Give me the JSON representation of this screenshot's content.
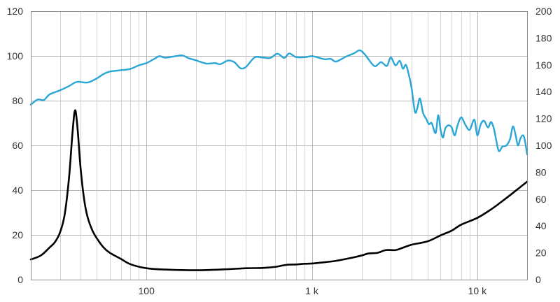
{
  "chart_data": {
    "type": "line",
    "title": "",
    "xlabel": "",
    "ylabel": "",
    "ylabel_right": "",
    "x_scale": "log",
    "xlim": [
      20,
      20000
    ],
    "ylim_left": [
      0,
      120
    ],
    "ylim_right": [
      0,
      200
    ],
    "grid": true,
    "legend": "none",
    "x_ticks": [
      {
        "value": 100,
        "label": "100"
      },
      {
        "value": 1000,
        "label": "1 k"
      },
      {
        "value": 10000,
        "label": "10 k"
      }
    ],
    "y_ticks_left": [
      "0",
      "20",
      "40",
      "60",
      "80",
      "100",
      "120"
    ],
    "y_ticks_right": [
      "0",
      "20",
      "40",
      "60",
      "80",
      "100",
      "120",
      "140",
      "160",
      "180",
      "200"
    ],
    "series": [
      {
        "axis": "left",
        "color": "#2aa6d6",
        "points": [
          [
            20,
            78.2
          ],
          [
            22,
            80.5
          ],
          [
            24,
            80.3
          ],
          [
            26,
            82.8
          ],
          [
            30,
            84.6
          ],
          [
            34,
            86.5
          ],
          [
            38,
            88.4
          ],
          [
            44,
            88.1
          ],
          [
            50,
            89.9
          ],
          [
            55,
            91.9
          ],
          [
            60,
            93.0
          ],
          [
            70,
            93.6
          ],
          [
            80,
            94.2
          ],
          [
            90,
            95.8
          ],
          [
            100,
            96.8
          ],
          [
            110,
            98.4
          ],
          [
            120,
            99.9
          ],
          [
            130,
            99.2
          ],
          [
            150,
            99.9
          ],
          [
            165,
            100.2
          ],
          [
            180,
            99.0
          ],
          [
            200,
            98.0
          ],
          [
            230,
            96.6
          ],
          [
            260,
            96.8
          ],
          [
            280,
            96.3
          ],
          [
            310,
            97.9
          ],
          [
            340,
            97.2
          ],
          [
            370,
            94.5
          ],
          [
            400,
            95.1
          ],
          [
            450,
            99.3
          ],
          [
            500,
            99.3
          ],
          [
            560,
            99.1
          ],
          [
            620,
            101.0
          ],
          [
            680,
            99.1
          ],
          [
            730,
            101.1
          ],
          [
            800,
            99.5
          ],
          [
            900,
            99.4
          ],
          [
            1000,
            99.9
          ],
          [
            1100,
            99.2
          ],
          [
            1200,
            98.5
          ],
          [
            1300,
            98.7
          ],
          [
            1400,
            97.5
          ],
          [
            1600,
            99.6
          ],
          [
            1800,
            101.2
          ],
          [
            1950,
            102.5
          ],
          [
            2100,
            100.5
          ],
          [
            2200,
            98.5
          ],
          [
            2400,
            95.4
          ],
          [
            2600,
            97.2
          ],
          [
            2700,
            96.6
          ],
          [
            2850,
            95.6
          ],
          [
            3000,
            99.3
          ],
          [
            3200,
            95.8
          ],
          [
            3400,
            97.8
          ],
          [
            3550,
            94.3
          ],
          [
            3700,
            96.0
          ],
          [
            3850,
            91.8
          ],
          [
            4000,
            86.0
          ],
          [
            4200,
            75.0
          ],
          [
            4350,
            77.0
          ],
          [
            4500,
            81.0
          ],
          [
            4700,
            74.5
          ],
          [
            4900,
            72.0
          ],
          [
            5100,
            69.5
          ],
          [
            5300,
            70.0
          ],
          [
            5600,
            65.5
          ],
          [
            5800,
            73.5
          ],
          [
            6000,
            67.0
          ],
          [
            6200,
            63.5
          ],
          [
            6400,
            67.5
          ],
          [
            6700,
            69.0
          ],
          [
            7000,
            68.0
          ],
          [
            7300,
            64.5
          ],
          [
            7600,
            69.0
          ],
          [
            8000,
            72.5
          ],
          [
            8500,
            69.0
          ],
          [
            9000,
            67.0
          ],
          [
            9600,
            71.5
          ],
          [
            10000,
            64.5
          ],
          [
            10500,
            69.5
          ],
          [
            11000,
            71.0
          ],
          [
            11600,
            68.0
          ],
          [
            12100,
            70.5
          ],
          [
            12600,
            67.5
          ],
          [
            13000,
            62.5
          ],
          [
            13500,
            57.5
          ],
          [
            14200,
            59.5
          ],
          [
            15000,
            60.0
          ],
          [
            15800,
            63.0
          ],
          [
            16400,
            68.5
          ],
          [
            17000,
            65.0
          ],
          [
            17600,
            60.0
          ],
          [
            18200,
            63.0
          ],
          [
            18800,
            64.5
          ],
          [
            19300,
            63.0
          ],
          [
            20000,
            56.0
          ]
        ]
      },
      {
        "axis": "right",
        "color": "#000000",
        "points": [
          [
            20,
            15.0
          ],
          [
            23,
            18.0
          ],
          [
            26,
            24.0
          ],
          [
            28,
            28.0
          ],
          [
            30,
            35.0
          ],
          [
            32,
            48.0
          ],
          [
            34,
            75.0
          ],
          [
            35.5,
            105.0
          ],
          [
            36.5,
            122.0
          ],
          [
            37,
            126.0
          ],
          [
            37.5,
            124.0
          ],
          [
            38.5,
            110.0
          ],
          [
            40,
            83.0
          ],
          [
            42,
            60.0
          ],
          [
            44,
            47.0
          ],
          [
            47,
            37.0
          ],
          [
            50,
            31.0
          ],
          [
            55,
            24.0
          ],
          [
            60,
            20.0
          ],
          [
            70,
            15.5
          ],
          [
            80,
            11.5
          ],
          [
            100,
            8.5
          ],
          [
            130,
            7.5
          ],
          [
            200,
            7.0
          ],
          [
            300,
            7.7
          ],
          [
            400,
            8.5
          ],
          [
            500,
            8.7
          ],
          [
            600,
            9.5
          ],
          [
            700,
            11.0
          ],
          [
            800,
            11.3
          ],
          [
            900,
            11.8
          ],
          [
            1000,
            12.0
          ],
          [
            1100,
            12.5
          ],
          [
            1200,
            13.0
          ],
          [
            1400,
            14.0
          ],
          [
            1700,
            16.0
          ],
          [
            2000,
            18.0
          ],
          [
            2200,
            19.5
          ],
          [
            2500,
            20.0
          ],
          [
            2800,
            22.0
          ],
          [
            3200,
            22.0
          ],
          [
            3500,
            23.5
          ],
          [
            4000,
            26.0
          ],
          [
            5000,
            28.5
          ],
          [
            6000,
            33.0
          ],
          [
            7000,
            36.5
          ],
          [
            8000,
            41.0
          ],
          [
            10000,
            46.0
          ],
          [
            12000,
            52.0
          ],
          [
            14000,
            58.0
          ],
          [
            16000,
            63.5
          ],
          [
            18000,
            68.5
          ],
          [
            20000,
            73.0
          ]
        ]
      }
    ]
  }
}
